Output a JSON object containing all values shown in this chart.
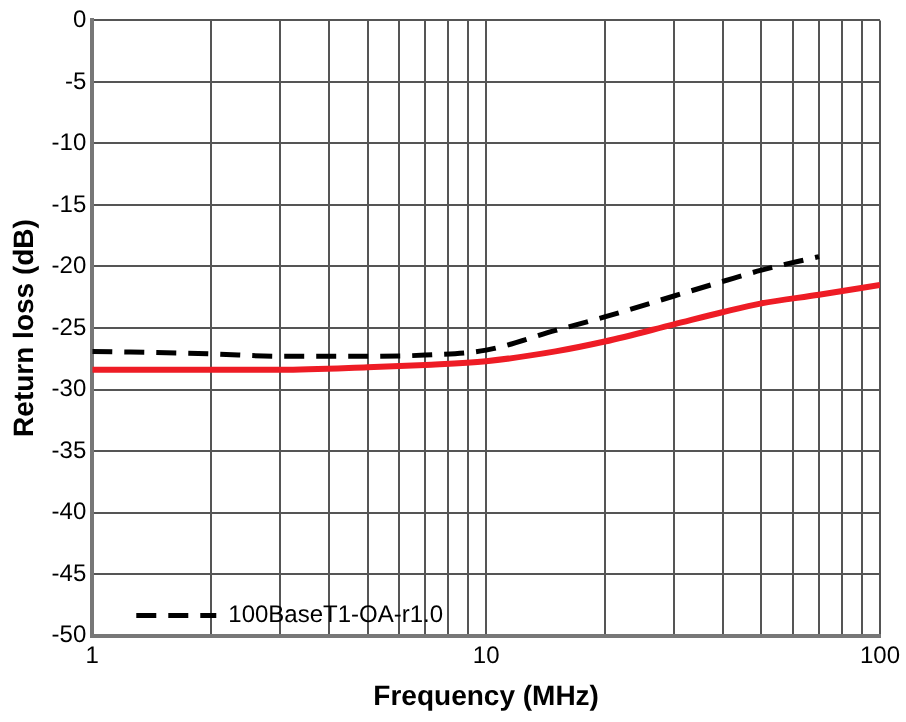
{
  "chart_data": {
    "type": "line",
    "xlabel": "Frequency (MHz)",
    "ylabel": "Return loss (dB)",
    "log": "x",
    "grid": true,
    "legend": "bottom left",
    "marker": "none",
    "xlim": [
      1,
      100
    ],
    "ylim": [
      -50,
      0
    ],
    "xticks": [
      1,
      {
        "value": 2,
        "label": null
      },
      {
        "value": 3,
        "label": null
      },
      {
        "value": 4,
        "label": null
      },
      {
        "value": 5,
        "label": null
      },
      {
        "value": 6,
        "label": null
      },
      {
        "value": 7,
        "label": null
      },
      {
        "value": 8,
        "label": null
      },
      {
        "value": 9,
        "label": null
      },
      10,
      {
        "value": 20,
        "label": null
      },
      {
        "value": 30,
        "label": null
      },
      {
        "value": 40,
        "label": null
      },
      {
        "value": 50,
        "label": null
      },
      {
        "value": 60,
        "label": null
      },
      {
        "value": 70,
        "label": null
      },
      {
        "value": 80,
        "label": null
      },
      {
        "value": 90,
        "label": null
      },
      100
    ],
    "yticks": [
      -50,
      -45,
      -40,
      -35,
      -30,
      -25,
      -20,
      -15,
      -10,
      -5,
      0
    ],
    "series": [
      {
        "color": "#ee1c25",
        "line_style": "solid",
        "x": [
          1,
          2,
          3,
          5,
          7,
          10,
          15,
          20,
          30,
          40,
          50,
          70,
          100
        ],
        "values": [
          -28.4,
          -28.4,
          -28.4,
          -28.2,
          -28.0,
          -27.7,
          -26.9,
          -26.1,
          -24.7,
          -23.7,
          -23.0,
          -22.3,
          -21.5
        ]
      },
      {
        "name": "100BaseT1-OA-r1.0",
        "color": "#000000",
        "line_style": "dashed",
        "x": [
          1,
          2,
          3,
          5,
          7,
          10,
          15,
          20,
          30,
          40,
          50,
          70
        ],
        "values": [
          -26.9,
          -27.1,
          -27.3,
          -27.3,
          -27.2,
          -26.8,
          -25.2,
          -24.1,
          -22.4,
          -21.2,
          -20.3,
          -19.2
        ]
      }
    ]
  }
}
